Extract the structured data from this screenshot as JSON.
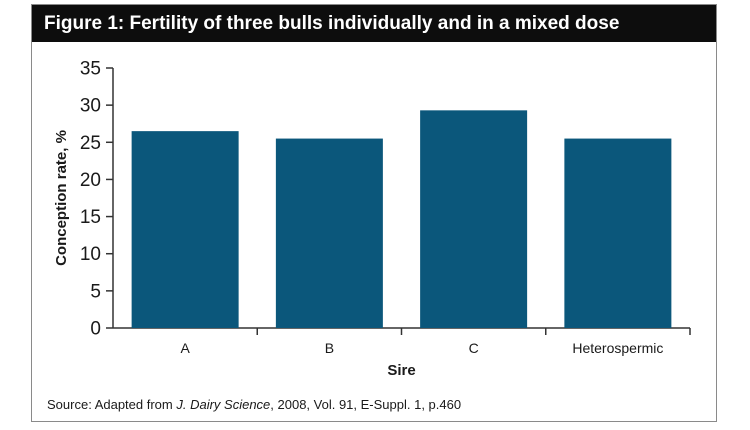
{
  "colors": {
    "bar": "#0b577b",
    "title_bg": "#0d0d0d",
    "title_fg": "#ffffff",
    "axis": "#333333"
  },
  "chart_data": {
    "type": "bar",
    "title": "Figure 1: Fertility of three bulls individually and in a mixed dose",
    "xlabel": "Sire",
    "ylabel": "Conception rate, %",
    "categories": [
      "A",
      "B",
      "C",
      "Heterospermic"
    ],
    "values": [
      26.5,
      25.5,
      29.3,
      25.5
    ],
    "ylim": [
      0,
      35
    ],
    "yticks": [
      0,
      5,
      10,
      15,
      20,
      25,
      30,
      35
    ],
    "grid": false,
    "legend": "none",
    "source": {
      "prefix": "Source: Adapted from ",
      "journal": "J. Dairy Science",
      "suffix": ", 2008, Vol. 91, E-Suppl. 1, p.460"
    }
  }
}
